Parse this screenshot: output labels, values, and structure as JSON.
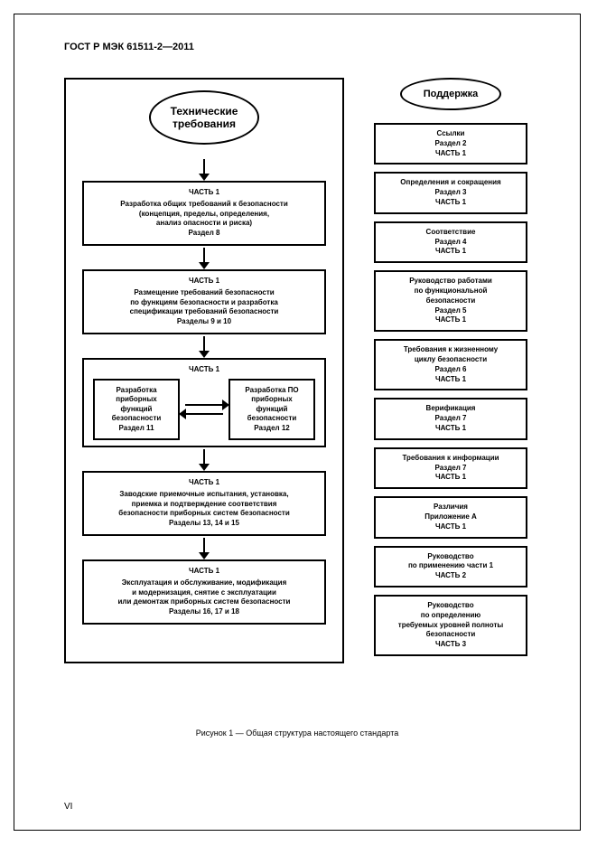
{
  "header": "ГОСТ Р МЭК 61511-2—2011",
  "left": {
    "ellipse": "Технические\nтребования",
    "boxes": [
      {
        "title": "ЧАСТЬ 1",
        "lines": [
          "Разработка общих требований к безопасности",
          "(концепция, пределы, определения,",
          "анализ опасности и риска)",
          "Раздел 8"
        ]
      },
      {
        "title": "ЧАСТЬ 1",
        "lines": [
          "Размещение требований безопасности",
          "по функциям безопасности и разработка",
          "спецификации требований безопасности",
          "Разделы 9 и 10"
        ]
      },
      {
        "title": "ЧАСТЬ 1",
        "lines": [
          "Заводские приемочные испытания, установка,",
          "приемка и подтверждение соответствия",
          "безопасности приборных систем безопасности",
          "Разделы 13, 14 и 15"
        ]
      },
      {
        "title": "ЧАСТЬ 1",
        "lines": [
          "Эксплуатация и обслуживание, модификация",
          "и модернизация, снятие с эксплуатации",
          "или демонтаж приборных систем безопасности",
          "Разделы 16, 17 и 18"
        ]
      }
    ],
    "inner": {
      "title": "ЧАСТЬ 1",
      "left": {
        "lines": [
          "Разработка",
          "приборных",
          "функций",
          "безопасности",
          "Раздел 11"
        ]
      },
      "right": {
        "lines": [
          "Разработка ПО",
          "приборных",
          "функций",
          "безопасности",
          "Раздел 12"
        ]
      }
    }
  },
  "right": {
    "ellipse": "Поддержка",
    "boxes": [
      {
        "lines": [
          "Ссылки",
          "Раздел 2",
          "ЧАСТЬ 1"
        ]
      },
      {
        "lines": [
          "Определения и сокращения",
          "Раздел 3",
          "ЧАСТЬ 1"
        ]
      },
      {
        "lines": [
          "Соответствие",
          "Раздел 4",
          "ЧАСТЬ 1"
        ]
      },
      {
        "lines": [
          "Руководство работами",
          "по функциональной",
          "безопасности",
          "Раздел 5",
          "ЧАСТЬ 1"
        ]
      },
      {
        "lines": [
          "Требования к жизненному",
          "циклу безопасности",
          "Раздел 6",
          "ЧАСТЬ 1"
        ]
      },
      {
        "lines": [
          "Верификация",
          "Раздел 7",
          "ЧАСТЬ 1"
        ]
      },
      {
        "lines": [
          "Требования к информации",
          "Раздел 7",
          "ЧАСТЬ 1"
        ]
      },
      {
        "lines": [
          "Различия",
          "Приложение А",
          "ЧАСТЬ 1"
        ]
      },
      {
        "lines": [
          "Руководство",
          "по применению части 1",
          "ЧАСТЬ 2"
        ]
      },
      {
        "lines": [
          "Руководство",
          "по определению",
          "требуемых уровней полноты",
          "безопасности",
          "ЧАСТЬ 3"
        ]
      }
    ]
  },
  "caption": "Рисунок 1 — Общая структура настоящего стандарта",
  "pagenum": "VI"
}
